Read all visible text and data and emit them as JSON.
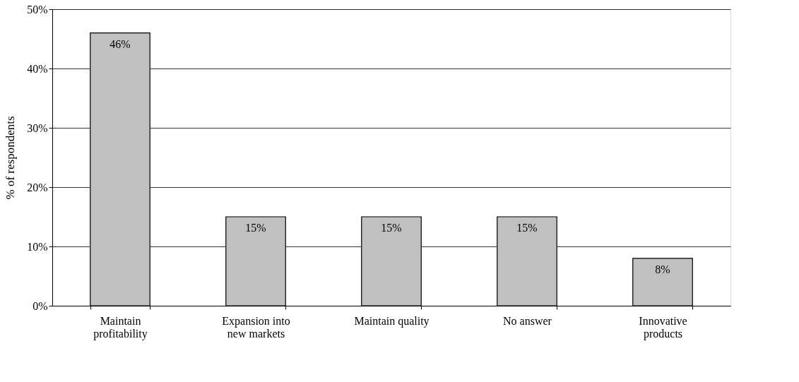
{
  "chart_data": {
    "type": "bar",
    "ylabel": "% of respondents",
    "categories": [
      "Maintain profitability",
      "Expansion into new markets",
      "Maintain quality",
      "No answer",
      "Innovative products"
    ],
    "values": [
      46,
      15,
      15,
      15,
      8
    ],
    "value_labels": [
      "46%",
      "15%",
      "15%",
      "15%",
      "8%"
    ],
    "color": "#c0c0c0",
    "ylim": [
      0,
      50
    ],
    "yticks": [
      {
        "value": 0,
        "label": "0%"
      },
      {
        "value": 10,
        "label": "10%"
      },
      {
        "value": 20,
        "label": "20%"
      },
      {
        "value": 30,
        "label": "30%"
      },
      {
        "value": 40,
        "label": "40%"
      },
      {
        "value": 50,
        "label": "50%"
      }
    ],
    "grid": "y"
  }
}
